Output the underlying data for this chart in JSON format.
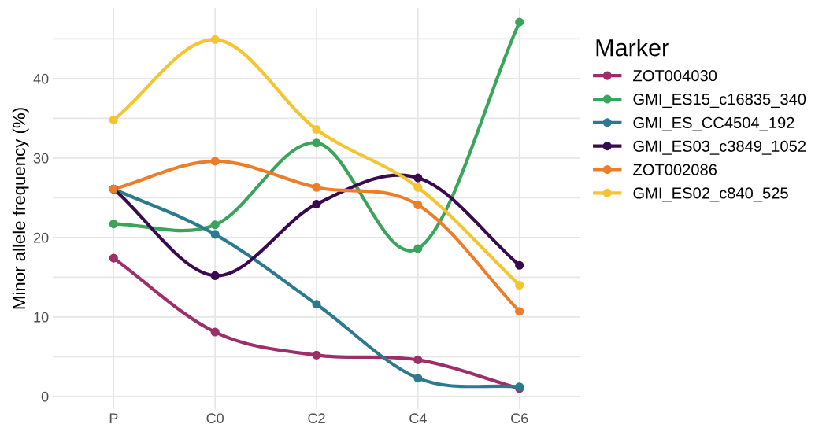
{
  "chart_data": {
    "type": "line",
    "ylabel": "Minor allele frequency (%)",
    "legend_title": "Marker",
    "legend": "right",
    "grid": true,
    "marker": "circle",
    "line_style": "solid",
    "categories": [
      "P",
      "C0",
      "C2",
      "C4",
      "C6"
    ],
    "ylim": [
      -1.6,
      48.9
    ],
    "yticks": [
      0,
      {
        "value": 5,
        "label": null
      },
      10,
      {
        "value": 15,
        "label": null
      },
      20,
      {
        "value": 25,
        "label": null
      },
      30,
      {
        "value": 35,
        "label": null
      },
      40,
      {
        "value": 45,
        "label": null
      }
    ],
    "series": [
      {
        "name": "ZOT004030",
        "color": "#9c2e6a",
        "values": [
          17.4,
          8.1,
          5.2,
          4.6,
          1.0
        ]
      },
      {
        "name": "GMI_ES15_c16835_340",
        "color": "#3aa55a",
        "values": [
          21.7,
          21.6,
          31.9,
          18.6,
          47.1
        ]
      },
      {
        "name": "GMI_ES_CC4504_192",
        "color": "#2a7b8e",
        "values": [
          26.1,
          20.4,
          11.6,
          2.3,
          1.2
        ]
      },
      {
        "name": "GMI_ES03_c3849_1052",
        "color": "#3a0a4f",
        "values": [
          26.1,
          15.2,
          24.2,
          27.5,
          16.5
        ]
      },
      {
        "name": "ZOT002086",
        "color": "#ee7d2a",
        "values": [
          26.1,
          29.6,
          26.3,
          24.1,
          10.7
        ]
      },
      {
        "name": "GMI_ES02_c840_525",
        "color": "#f5c431",
        "values": [
          34.8,
          44.9,
          33.6,
          26.3,
          14.0
        ]
      }
    ]
  }
}
